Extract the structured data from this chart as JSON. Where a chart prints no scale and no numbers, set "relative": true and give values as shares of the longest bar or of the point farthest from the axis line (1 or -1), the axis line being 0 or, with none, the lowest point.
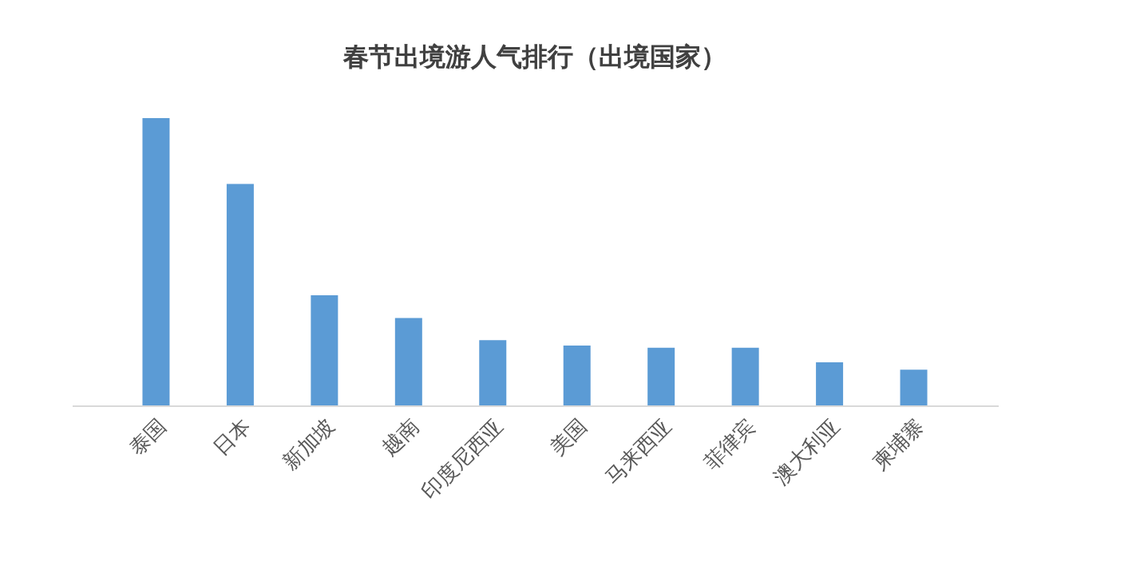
{
  "chart_data": {
    "type": "bar",
    "title": "春节出境游人气排行（出境国家）",
    "relative": true,
    "color": "#5b9bd5",
    "categories": [
      "泰国",
      "日本",
      "新加坡",
      "越南",
      "印度尼西亚",
      "美国",
      "马来西亚",
      "菲律宾",
      "澳大利亚",
      "柬埔寨"
    ],
    "values": [
      1,
      0.771,
      0.383,
      0.304,
      0.227,
      0.208,
      0.201,
      0.201,
      0.15,
      0.124
    ],
    "grid": false
  }
}
